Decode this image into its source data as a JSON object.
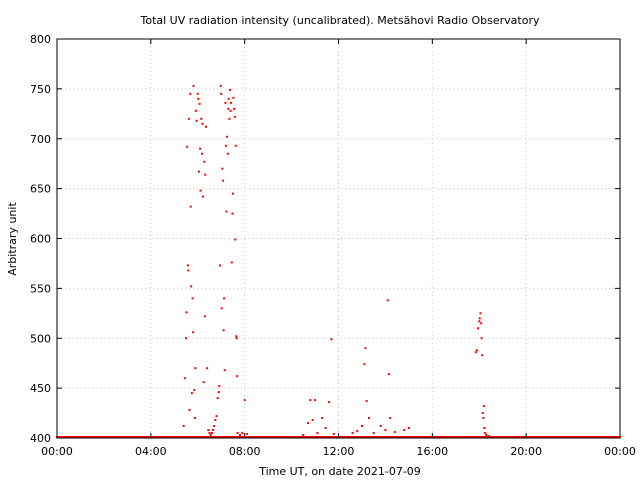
{
  "chart_data": {
    "type": "scatter",
    "title": "Total UV radiation intensity (uncalibrated). Metsähovi Radio Observatory",
    "xlabel": "Time UT, on date 2021-07-09",
    "ylabel": "Arbitrary unit",
    "x_unit": "hours UT",
    "xlim": [
      0,
      24
    ],
    "ylim": [
      400,
      800
    ],
    "x_ticks": [
      {
        "value": 0,
        "label": "00:00"
      },
      {
        "value": 4,
        "label": "04:00"
      },
      {
        "value": 8,
        "label": "08:00"
      },
      {
        "value": 12,
        "label": "12:00"
      },
      {
        "value": 16,
        "label": "16:00"
      },
      {
        "value": 20,
        "label": "20:00"
      },
      {
        "value": 24,
        "label": "00:00"
      }
    ],
    "y_ticks": [
      400,
      450,
      500,
      550,
      600,
      650,
      700,
      750,
      800
    ],
    "grid": true,
    "grid_style": "dotted",
    "colors": {
      "points": "#ff0000",
      "grid": "#c8c8c8",
      "axes": "#000000"
    },
    "baseline": {
      "value": 401,
      "from": 0,
      "to": 24
    },
    "series": [
      {
        "points": [
          [
            5.4,
            412
          ],
          [
            5.45,
            460
          ],
          [
            5.5,
            500
          ],
          [
            5.52,
            526
          ],
          [
            5.55,
            692
          ],
          [
            5.58,
            573
          ],
          [
            5.6,
            568
          ],
          [
            5.62,
            720
          ],
          [
            5.65,
            428
          ],
          [
            5.68,
            745
          ],
          [
            5.7,
            632
          ],
          [
            5.72,
            552
          ],
          [
            5.75,
            445
          ],
          [
            5.78,
            540
          ],
          [
            5.8,
            506
          ],
          [
            5.82,
            753
          ],
          [
            5.85,
            448
          ],
          [
            5.88,
            420
          ],
          [
            5.9,
            470
          ],
          [
            5.92,
            728
          ],
          [
            5.95,
            718
          ],
          [
            6.0,
            745
          ],
          [
            6.02,
            740
          ],
          [
            6.05,
            667
          ],
          [
            6.08,
            735
          ],
          [
            6.1,
            690
          ],
          [
            6.12,
            648
          ],
          [
            6.15,
            720
          ],
          [
            6.18,
            685
          ],
          [
            6.2,
            715
          ],
          [
            6.22,
            642
          ],
          [
            6.25,
            456
          ],
          [
            6.28,
            677
          ],
          [
            6.3,
            522
          ],
          [
            6.32,
            664
          ],
          [
            6.35,
            712
          ],
          [
            6.4,
            470
          ],
          [
            6.45,
            408
          ],
          [
            6.5,
            405
          ],
          [
            6.55,
            403
          ],
          [
            6.6,
            405
          ],
          [
            6.65,
            408
          ],
          [
            6.7,
            412
          ],
          [
            6.75,
            418
          ],
          [
            6.8,
            422
          ],
          [
            6.85,
            440
          ],
          [
            6.9,
            446
          ],
          [
            6.92,
            452
          ],
          [
            6.95,
            573
          ],
          [
            6.98,
            753
          ],
          [
            7.0,
            745
          ],
          [
            7.02,
            530
          ],
          [
            7.05,
            670
          ],
          [
            7.08,
            658
          ],
          [
            7.1,
            508
          ],
          [
            7.12,
            540
          ],
          [
            7.15,
            468
          ],
          [
            7.18,
            736
          ],
          [
            7.2,
            693
          ],
          [
            7.22,
            627
          ],
          [
            7.25,
            702
          ],
          [
            7.28,
            685
          ],
          [
            7.3,
            730
          ],
          [
            7.32,
            740
          ],
          [
            7.35,
            720
          ],
          [
            7.38,
            749
          ],
          [
            7.4,
            728
          ],
          [
            7.42,
            736
          ],
          [
            7.45,
            576
          ],
          [
            7.48,
            625
          ],
          [
            7.5,
            645
          ],
          [
            7.52,
            741
          ],
          [
            7.55,
            730
          ],
          [
            7.58,
            722
          ],
          [
            7.6,
            599
          ],
          [
            7.62,
            693
          ],
          [
            7.64,
            502
          ],
          [
            7.66,
            500
          ],
          [
            7.68,
            462
          ],
          [
            7.7,
            405
          ],
          [
            7.8,
            403
          ],
          [
            7.9,
            405
          ],
          [
            8.0,
            438
          ],
          [
            8.1,
            404
          ],
          [
            10.5,
            403
          ],
          [
            10.7,
            415
          ],
          [
            10.8,
            438
          ],
          [
            10.9,
            418
          ],
          [
            11.0,
            438
          ],
          [
            11.1,
            405
          ],
          [
            11.3,
            420
          ],
          [
            11.45,
            410
          ],
          [
            11.6,
            436
          ],
          [
            11.7,
            499
          ],
          [
            11.8,
            404
          ],
          [
            12.6,
            405
          ],
          [
            12.8,
            407
          ],
          [
            13.0,
            412
          ],
          [
            13.1,
            474
          ],
          [
            13.15,
            490
          ],
          [
            13.2,
            437
          ],
          [
            13.3,
            420
          ],
          [
            13.5,
            405
          ],
          [
            13.8,
            412
          ],
          [
            14.0,
            408
          ],
          [
            14.1,
            538
          ],
          [
            14.15,
            464
          ],
          [
            14.2,
            420
          ],
          [
            14.4,
            406
          ],
          [
            14.8,
            408
          ],
          [
            15.0,
            410
          ],
          [
            17.85,
            486
          ],
          [
            17.9,
            488
          ],
          [
            17.95,
            510
          ],
          [
            18.0,
            517
          ],
          [
            18.02,
            520
          ],
          [
            18.05,
            525
          ],
          [
            18.08,
            515
          ],
          [
            18.1,
            500
          ],
          [
            18.12,
            483
          ],
          [
            18.15,
            425
          ],
          [
            18.18,
            420
          ],
          [
            18.2,
            432
          ],
          [
            18.22,
            410
          ],
          [
            18.25,
            405
          ],
          [
            18.3,
            403
          ],
          [
            18.4,
            402
          ]
        ]
      }
    ]
  }
}
